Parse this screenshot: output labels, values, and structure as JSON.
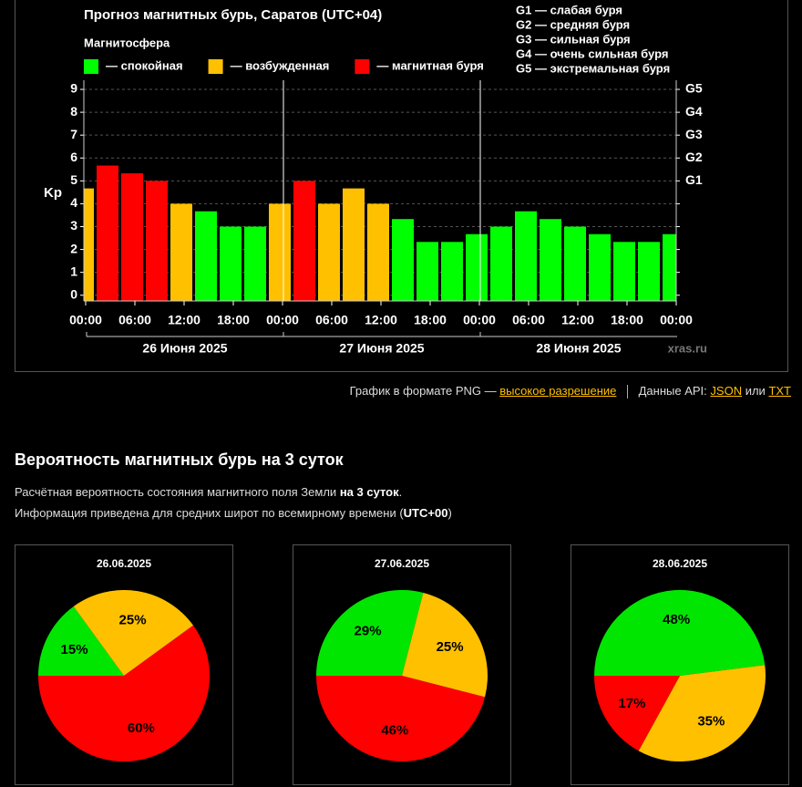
{
  "chart_data": [
    {
      "type": "bar",
      "title": "Прогноз магнитных бурь, Саратов (UTC+04)",
      "legend_title": "Магнитосфера",
      "legend": [
        {
          "name": "— спокойная",
          "color": "#00ff00"
        },
        {
          "name": "— возбужденная",
          "color": "#ffc000"
        },
        {
          "name": "— магнитная буря",
          "color": "#ff0000"
        }
      ],
      "g_legend": [
        "G1 — слабая буря",
        "G2 — средняя буря",
        "G3 — сильная буря",
        "G4 — очень сильная буря",
        "G5 — экстремальная буря"
      ],
      "ylabel": "Kp",
      "values": [
        4.67,
        5.67,
        5.33,
        5.0,
        4.0,
        3.67,
        3.0,
        3.0,
        4.0,
        5.0,
        4.0,
        4.67,
        4.0,
        3.33,
        2.33,
        2.33,
        2.67,
        3.0,
        3.67,
        3.33,
        3.0,
        2.67,
        2.33,
        2.33,
        2.67
      ],
      "colors": [
        "#ffc000",
        "#ff0000",
        "#ff0000",
        "#ff0000",
        "#ffc000",
        "#00ff00",
        "#00ff00",
        "#00ff00",
        "#ffc000",
        "#ff0000",
        "#ffc000",
        "#ffc000",
        "#ffc000",
        "#00ff00",
        "#00ff00",
        "#00ff00",
        "#00ff00",
        "#00ff00",
        "#00ff00",
        "#00ff00",
        "#00ff00",
        "#00ff00",
        "#00ff00",
        "#00ff00",
        "#00ff00"
      ],
      "ylim": [
        -0.25,
        9.4
      ],
      "yticks": [
        0,
        1,
        2,
        3,
        4,
        5,
        6,
        7,
        8,
        9
      ],
      "y2ticks": [
        {
          "value": 5,
          "label": "G1"
        },
        {
          "value": 6,
          "label": "G2"
        },
        {
          "value": 7,
          "label": "G3"
        },
        {
          "value": 8,
          "label": "G4"
        },
        {
          "value": 9,
          "label": "G5"
        }
      ],
      "xtick_labels": [
        "00:00",
        "06:00",
        "12:00",
        "18:00",
        "00:00",
        "06:00",
        "12:00",
        "18:00",
        "00:00",
        "06:00",
        "12:00",
        "18:00",
        "00:00"
      ],
      "days": [
        "26 Июня 2025",
        "27 Июня 2025",
        "28 Июня 2025"
      ],
      "watermark": "xras.ru",
      "grid": true
    },
    {
      "type": "pie",
      "title": "26.06.2025",
      "values": [
        15,
        25,
        60
      ],
      "value_labels": [
        "15%",
        "25%",
        "60%"
      ],
      "colors": [
        "#00e600",
        "#ffc000",
        "#ff0000"
      ]
    },
    {
      "type": "pie",
      "title": "27.06.2025",
      "values": [
        29,
        25,
        46
      ],
      "value_labels": [
        "29%",
        "25%",
        "46%"
      ],
      "colors": [
        "#00e600",
        "#ffc000",
        "#ff0000"
      ]
    },
    {
      "type": "pie",
      "title": "28.06.2025",
      "values": [
        48,
        35,
        17
      ],
      "value_labels": [
        "48%",
        "35%",
        "17%"
      ],
      "colors": [
        "#00e600",
        "#ffc000",
        "#ff0000"
      ]
    }
  ],
  "links": {
    "png": "График в формате PNG —",
    "hires": "высокое разрешение",
    "api": "Данные API:",
    "json": "JSON",
    "or": "или",
    "txt": "TXT"
  },
  "section": {
    "heading": "Вероятность магнитных бурь на 3 суток",
    "line1": "Расчётная вероятность состояния магнитного поля Земли",
    "line1_bold": "на 3 суток",
    "line1_end": ".",
    "line2": "Информация приведена для средних широт по всемирному времени (",
    "line2_bold": "UTC+00",
    "line2_end": ")"
  }
}
